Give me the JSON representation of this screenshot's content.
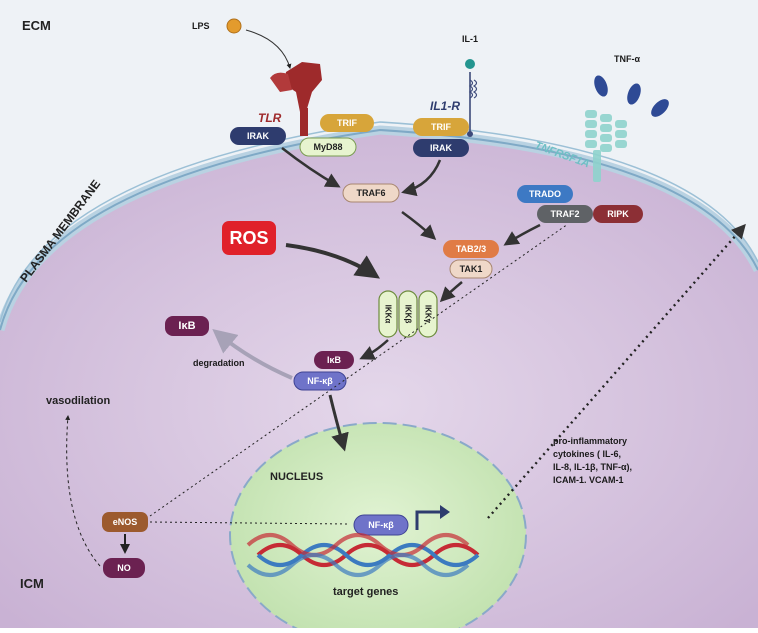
{
  "regions": {
    "ecm": "ECM",
    "icm": "ICM",
    "plasma_membrane": "PLASMA MEMBRANE",
    "nucleus": "NUCLEUS"
  },
  "ligands": {
    "lps": "LPS",
    "il1": "IL-1",
    "tnf": "TNF-α"
  },
  "receptors": {
    "tlr": "TLR",
    "il1r": "IL1-R",
    "tnfrsf1a": "TNFRSF1A"
  },
  "proteins": {
    "irak_tlr": "IRAK",
    "trif_tlr": "TRIF",
    "myd88": "MyD88",
    "trif_il1": "TRIF",
    "irak_il1": "IRAK",
    "traf6": "TRAF6",
    "trado": "TRADO",
    "traf2": "TRAF2",
    "ripk": "RIPK",
    "tab23": "TAB2/3",
    "tak1": "TAK1",
    "ikka": "IKKα",
    "ikkb": "IKKβ",
    "ikky": "IKKγ",
    "ikb_free": "IκB",
    "ikb_bound": "IκB",
    "nfkb_cyto": "NF-κβ",
    "nfkb_nuc": "NF-κβ",
    "enos": "eNOS",
    "no": "NO"
  },
  "misc": {
    "ros": "ROS",
    "degradation": "degradation",
    "vasodilation": "vasodilation",
    "target_genes": "target genes",
    "cytokines": [
      "pro-inflammatory",
      "cytokines ( IL-6,",
      "IL-8, IL-1β, TNF-α),",
      "ICAM-1. VCAM-1"
    ]
  },
  "colors": {
    "cell": "#d9c9e0",
    "membrane": "#aac7d9",
    "nucleus": "#cfe9c1",
    "dark_blue": "#2e3c6e",
    "gold": "#d7a53a",
    "light_green": "#e7f4cf",
    "peach": "#efd8c8",
    "orange": "#e07b45",
    "blue": "#3d79c4",
    "gray": "#5f6266",
    "dark_red": "#8c2f35",
    "plum": "#6b2151",
    "periwinkle": "#6f73c9",
    "brown": "#9c5a2e",
    "ros_red": "#e0212a",
    "tlr_red": "#9e2a2b"
  }
}
